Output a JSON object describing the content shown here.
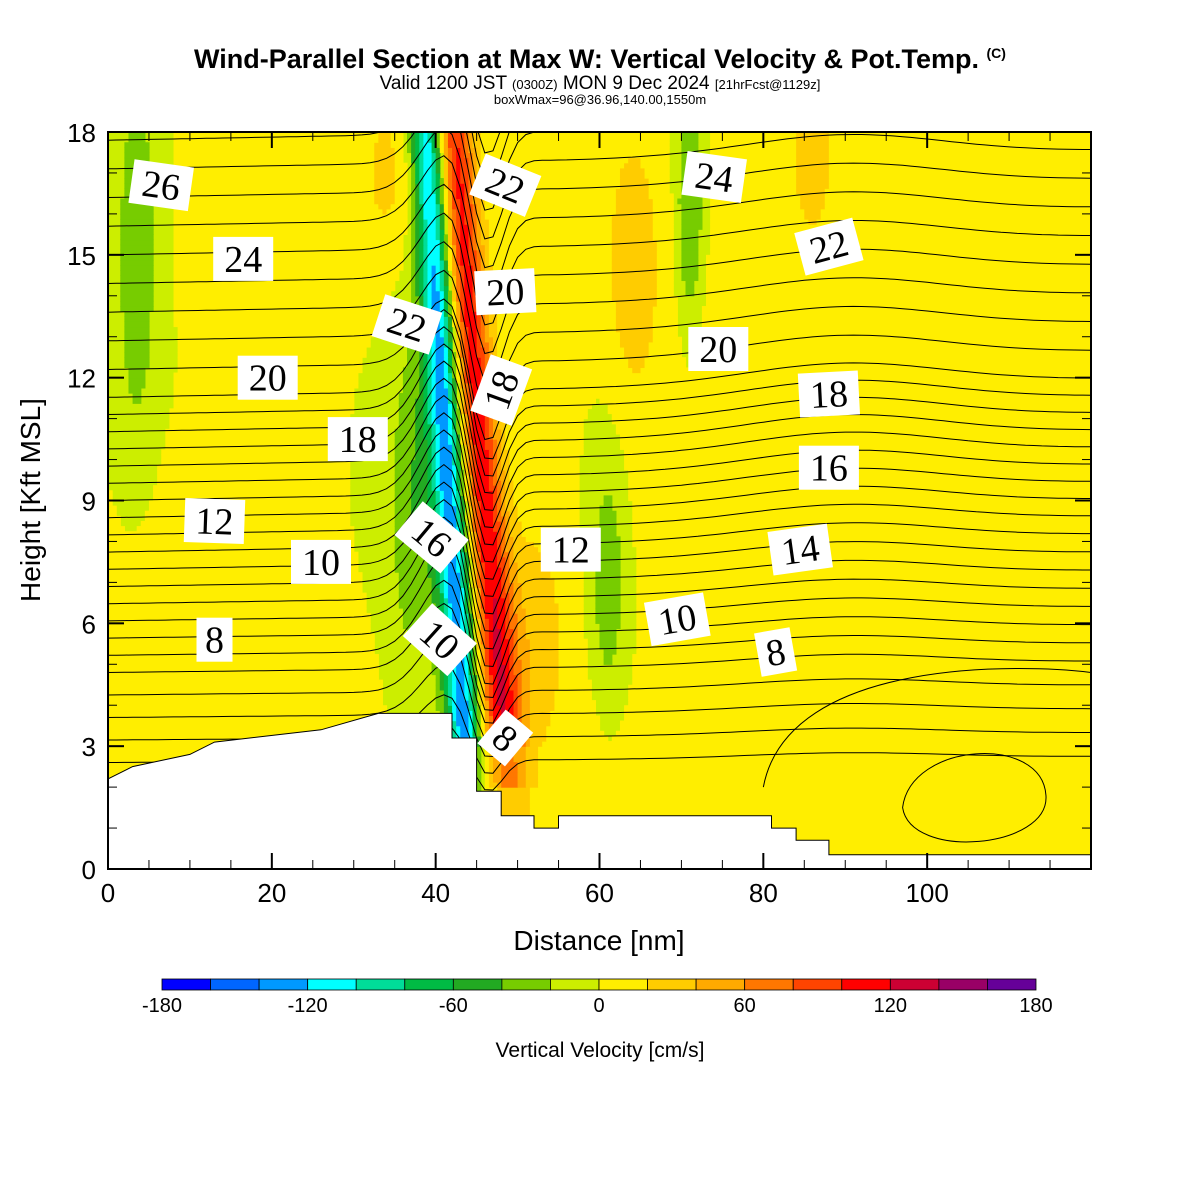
{
  "header": {
    "title": "Wind-Parallel Section at Max W: Vertical Velocity & Pot.Temp.",
    "copyright": "(C)",
    "valid_prefix": "Valid 1200 JST",
    "valid_utc": "(0300Z)",
    "valid_suffix": "MON 9 Dec 2024",
    "forecast": "[21hrFcst@1129z]",
    "boxmax": "boxWmax=96@36.96,140.00,1550m"
  },
  "chart_data": {
    "type": "heatmap",
    "xlabel": "Distance [nm]",
    "ylabel": "Height [Kft MSL]",
    "xlim": [
      0,
      120
    ],
    "ylim": [
      0,
      18
    ],
    "x_ticks": [
      "0",
      "20",
      "40",
      "60",
      "80",
      "100"
    ],
    "y_ticks": [
      "0",
      "3",
      "6",
      "9",
      "12",
      "15",
      "18"
    ],
    "colorbar": {
      "title": "Vertical Velocity [cm/s]",
      "ticks": [
        "-180",
        "-120",
        "-60",
        "0",
        "60",
        "120",
        "180"
      ],
      "levels": [
        -180,
        -160,
        -140,
        -120,
        -100,
        -80,
        -60,
        -40,
        -20,
        0,
        20,
        40,
        60,
        80,
        100,
        120,
        140,
        160,
        180
      ],
      "colors": [
        "#0000ff",
        "#0066ff",
        "#0099ff",
        "#00ffff",
        "#00dd99",
        "#00bb44",
        "#22aa22",
        "#77cc00",
        "#ccee00",
        "#ffee00",
        "#ffcc00",
        "#ffaa00",
        "#ff7700",
        "#ff4400",
        "#ff0000",
        "#cc0033",
        "#990066",
        "#660099"
      ]
    },
    "terrain_kft": [
      [
        0,
        2.2
      ],
      [
        3,
        2.5
      ],
      [
        10,
        2.8
      ],
      [
        13,
        3.1
      ],
      [
        26,
        3.4
      ],
      [
        33,
        3.8
      ],
      [
        42,
        3.8
      ],
      [
        42,
        3.2
      ],
      [
        45,
        3.2
      ],
      [
        45,
        1.9
      ],
      [
        48,
        1.9
      ],
      [
        48,
        1.3
      ],
      [
        52,
        1.3
      ],
      [
        52,
        1.0
      ],
      [
        55,
        1.0
      ],
      [
        55,
        1.3
      ],
      [
        81,
        1.3
      ],
      [
        81,
        1.0
      ],
      [
        84,
        1.0
      ],
      [
        84,
        0.7
      ],
      [
        88,
        0.7
      ],
      [
        88,
        0.35
      ],
      [
        120,
        0.35
      ]
    ],
    "theta_contour_labels": [
      {
        "text": "26",
        "x": 6.5,
        "y": 16.7,
        "rot": 8
      },
      {
        "text": "24",
        "x": 16.5,
        "y": 14.9,
        "rot": 0
      },
      {
        "text": "22",
        "x": 36.5,
        "y": 13.3,
        "rot": 18
      },
      {
        "text": "20",
        "x": 19.5,
        "y": 12.0,
        "rot": 0
      },
      {
        "text": "18",
        "x": 30.5,
        "y": 10.5,
        "rot": 0
      },
      {
        "text": "12",
        "x": 13,
        "y": 8.5,
        "rot": 2
      },
      {
        "text": "10",
        "x": 26,
        "y": 7.5,
        "rot": 0
      },
      {
        "text": "16",
        "x": 39.5,
        "y": 8.1,
        "rot": 40
      },
      {
        "text": "10",
        "x": 40.5,
        "y": 5.6,
        "rot": 42
      },
      {
        "text": "8",
        "x": 13,
        "y": 5.6,
        "rot": 0
      },
      {
        "text": "8",
        "x": 48.5,
        "y": 3.2,
        "rot": 40
      },
      {
        "text": "22",
        "x": 48.5,
        "y": 16.7,
        "rot": 22
      },
      {
        "text": "20",
        "x": 48.5,
        "y": 14.1,
        "rot": -3
      },
      {
        "text": "18",
        "x": 48,
        "y": 11.7,
        "rot": -70
      },
      {
        "text": "12",
        "x": 56.5,
        "y": 7.8,
        "rot": 0
      },
      {
        "text": "10",
        "x": 69.5,
        "y": 6.1,
        "rot": -10
      },
      {
        "text": "8",
        "x": 81.5,
        "y": 5.3,
        "rot": -10
      },
      {
        "text": "24",
        "x": 74,
        "y": 16.9,
        "rot": 8
      },
      {
        "text": "22",
        "x": 88,
        "y": 15.2,
        "rot": -15
      },
      {
        "text": "20",
        "x": 74.5,
        "y": 12.7,
        "rot": 0
      },
      {
        "text": "18",
        "x": 88,
        "y": 11.6,
        "rot": -3
      },
      {
        "text": "16",
        "x": 88,
        "y": 9.8,
        "rot": 0
      },
      {
        "text": "14",
        "x": 84.5,
        "y": 7.8,
        "rot": -8
      }
    ]
  }
}
